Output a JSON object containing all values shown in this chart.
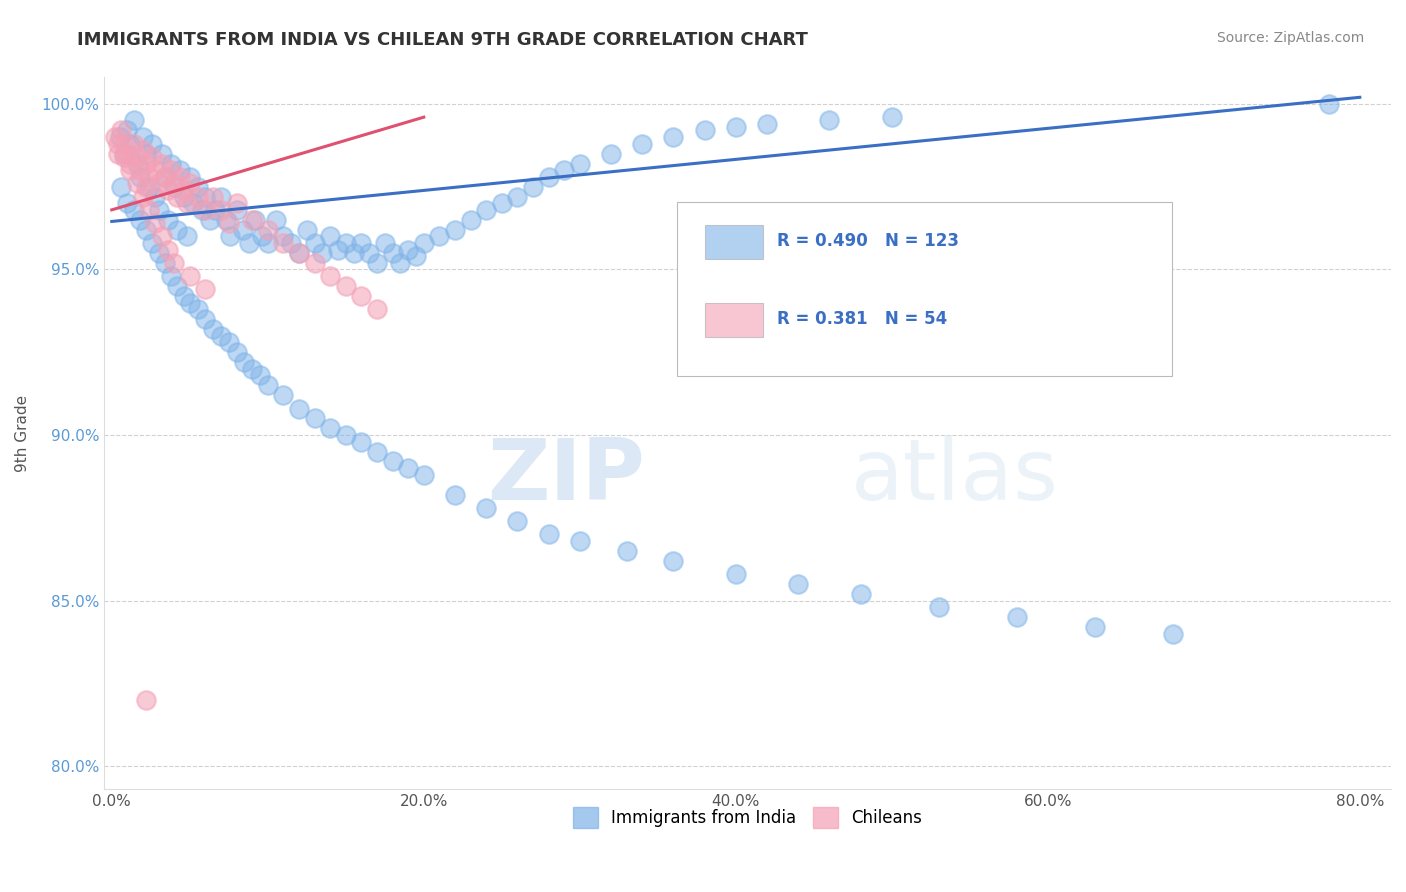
{
  "title": "IMMIGRANTS FROM INDIA VS CHILEAN 9TH GRADE CORRELATION CHART",
  "source_text": "Source: ZipAtlas.com",
  "ylabel": "9th Grade",
  "xlim": [
    -0.005,
    0.82
  ],
  "ylim": [
    0.793,
    1.008
  ],
  "xticks": [
    0.0,
    0.2,
    0.4,
    0.6,
    0.8
  ],
  "xtick_labels": [
    "0.0%",
    "20.0%",
    "40.0%",
    "60.0%",
    "80.0%"
  ],
  "yticks": [
    0.8,
    0.85,
    0.9,
    0.95,
    1.0
  ],
  "ytick_labels": [
    "80.0%",
    "85.0%",
    "90.0%",
    "95.0%",
    "100.0%"
  ],
  "india_R": 0.49,
  "india_N": 123,
  "chile_R": 0.381,
  "chile_N": 54,
  "india_color": "#7fb3e8",
  "chile_color": "#f4a0b5",
  "india_line_color": "#3a6fc4",
  "chile_line_color": "#e05070",
  "legend_india_label": "Immigrants from India",
  "legend_chile_label": "Chileans",
  "watermark_zip": "ZIP",
  "watermark_atlas": "atlas",
  "india_line_x": [
    0.0,
    0.8
  ],
  "india_line_y": [
    0.9645,
    1.002
  ],
  "chile_line_x": [
    0.0,
    0.2
  ],
  "chile_line_y": [
    0.968,
    0.996
  ],
  "india_x": [
    0.005,
    0.008,
    0.01,
    0.012,
    0.014,
    0.016,
    0.018,
    0.02,
    0.022,
    0.024,
    0.026,
    0.028,
    0.03,
    0.032,
    0.034,
    0.036,
    0.038,
    0.04,
    0.042,
    0.044,
    0.046,
    0.048,
    0.05,
    0.052,
    0.055,
    0.058,
    0.06,
    0.063,
    0.066,
    0.07,
    0.073,
    0.076,
    0.08,
    0.084,
    0.088,
    0.092,
    0.096,
    0.1,
    0.105,
    0.11,
    0.115,
    0.12,
    0.125,
    0.13,
    0.135,
    0.14,
    0.145,
    0.15,
    0.155,
    0.16,
    0.165,
    0.17,
    0.175,
    0.18,
    0.185,
    0.19,
    0.195,
    0.2,
    0.21,
    0.22,
    0.23,
    0.24,
    0.25,
    0.26,
    0.27,
    0.28,
    0.29,
    0.3,
    0.32,
    0.34,
    0.36,
    0.38,
    0.4,
    0.42,
    0.46,
    0.5,
    0.78,
    0.006,
    0.01,
    0.014,
    0.018,
    0.022,
    0.026,
    0.03,
    0.034,
    0.038,
    0.042,
    0.046,
    0.05,
    0.055,
    0.06,
    0.065,
    0.07,
    0.075,
    0.08,
    0.085,
    0.09,
    0.095,
    0.1,
    0.11,
    0.12,
    0.13,
    0.14,
    0.15,
    0.16,
    0.17,
    0.18,
    0.19,
    0.2,
    0.22,
    0.24,
    0.26,
    0.28,
    0.3,
    0.33,
    0.36,
    0.4,
    0.44,
    0.48,
    0.53,
    0.58,
    0.63,
    0.68
  ],
  "india_y": [
    0.99,
    0.985,
    0.992,
    0.988,
    0.995,
    0.982,
    0.978,
    0.99,
    0.985,
    0.975,
    0.988,
    0.972,
    0.968,
    0.985,
    0.978,
    0.965,
    0.982,
    0.975,
    0.962,
    0.98,
    0.972,
    0.96,
    0.978,
    0.97,
    0.975,
    0.968,
    0.972,
    0.965,
    0.968,
    0.972,
    0.965,
    0.96,
    0.968,
    0.962,
    0.958,
    0.965,
    0.96,
    0.958,
    0.965,
    0.96,
    0.958,
    0.955,
    0.962,
    0.958,
    0.955,
    0.96,
    0.956,
    0.958,
    0.955,
    0.958,
    0.955,
    0.952,
    0.958,
    0.955,
    0.952,
    0.956,
    0.954,
    0.958,
    0.96,
    0.962,
    0.965,
    0.968,
    0.97,
    0.972,
    0.975,
    0.978,
    0.98,
    0.982,
    0.985,
    0.988,
    0.99,
    0.992,
    0.993,
    0.994,
    0.995,
    0.996,
    1.0,
    0.975,
    0.97,
    0.968,
    0.965,
    0.962,
    0.958,
    0.955,
    0.952,
    0.948,
    0.945,
    0.942,
    0.94,
    0.938,
    0.935,
    0.932,
    0.93,
    0.928,
    0.925,
    0.922,
    0.92,
    0.918,
    0.915,
    0.912,
    0.908,
    0.905,
    0.902,
    0.9,
    0.898,
    0.895,
    0.892,
    0.89,
    0.888,
    0.882,
    0.878,
    0.874,
    0.87,
    0.868,
    0.865,
    0.862,
    0.858,
    0.855,
    0.852,
    0.848,
    0.845,
    0.842,
    0.84
  ],
  "chile_x": [
    0.002,
    0.004,
    0.006,
    0.008,
    0.01,
    0.012,
    0.014,
    0.016,
    0.018,
    0.02,
    0.022,
    0.024,
    0.026,
    0.028,
    0.03,
    0.032,
    0.034,
    0.036,
    0.038,
    0.04,
    0.042,
    0.044,
    0.046,
    0.048,
    0.05,
    0.055,
    0.06,
    0.065,
    0.07,
    0.075,
    0.08,
    0.09,
    0.1,
    0.11,
    0.12,
    0.13,
    0.14,
    0.15,
    0.16,
    0.17,
    0.004,
    0.008,
    0.012,
    0.016,
    0.02,
    0.024,
    0.028,
    0.032,
    0.036,
    0.04,
    0.05,
    0.06,
    0.022,
    0.022
  ],
  "chile_y": [
    0.99,
    0.985,
    0.992,
    0.988,
    0.985,
    0.982,
    0.988,
    0.984,
    0.98,
    0.986,
    0.982,
    0.978,
    0.984,
    0.98,
    0.976,
    0.982,
    0.978,
    0.974,
    0.98,
    0.976,
    0.972,
    0.978,
    0.974,
    0.97,
    0.976,
    0.972,
    0.968,
    0.972,
    0.968,
    0.964,
    0.97,
    0.965,
    0.962,
    0.958,
    0.955,
    0.952,
    0.948,
    0.945,
    0.942,
    0.938,
    0.988,
    0.984,
    0.98,
    0.976,
    0.972,
    0.968,
    0.964,
    0.96,
    0.956,
    0.952,
    0.948,
    0.944,
    0.975,
    0.82
  ]
}
